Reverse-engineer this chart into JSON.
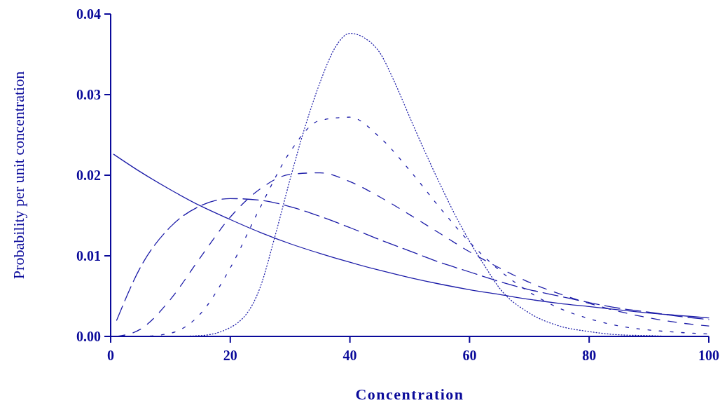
{
  "chart_data": {
    "type": "line",
    "xlabel": "Concentration",
    "ylabel": "Probability per unit concentration",
    "xlim": [
      0,
      100
    ],
    "ylim": [
      0,
      0.04
    ],
    "xticks": [
      0,
      20,
      40,
      60,
      80,
      100
    ],
    "yticks": [
      {
        "value": 0,
        "label": "0.00"
      },
      {
        "value": 0.01,
        "label": "0.01"
      },
      {
        "value": 0.02,
        "label": "0.02"
      },
      {
        "value": 0.03,
        "label": "0.03"
      },
      {
        "value": 0.04,
        "label": "0.04"
      }
    ],
    "grid": false,
    "marker": "none",
    "series": [
      {
        "color": "#1c1ca8",
        "line_style": "solid",
        "x": [
          0.5,
          5,
          10,
          15,
          20,
          25,
          30,
          35,
          40,
          45,
          50,
          55,
          60,
          65,
          70,
          75,
          80,
          85,
          90,
          95,
          100
        ],
        "values": [
          0.0226,
          0.0204,
          0.0182,
          0.0162,
          0.0145,
          0.0129,
          0.0115,
          0.0103,
          0.0092,
          0.0082,
          0.0073,
          0.0065,
          0.0058,
          0.0052,
          0.0046,
          0.0041,
          0.0037,
          0.0033,
          0.0029,
          0.0026,
          0.0023
        ]
      },
      {
        "color": "#1c1ca8",
        "line_style": "dashed",
        "x": [
          1,
          5,
          10,
          15,
          20,
          25,
          30,
          35,
          40,
          45,
          50,
          55,
          60,
          65,
          70,
          75,
          80,
          85,
          90,
          95,
          100
        ],
        "values": [
          0.002,
          0.0086,
          0.0136,
          0.0162,
          0.0171,
          0.0169,
          0.0161,
          0.0149,
          0.0135,
          0.012,
          0.0106,
          0.0092,
          0.008,
          0.0068,
          0.0058,
          0.005,
          0.0042,
          0.0035,
          0.003,
          0.0025,
          0.0021
        ]
      },
      {
        "color": "#1c1ca8",
        "line_style": "dashed",
        "x": [
          1,
          5,
          10,
          15,
          20,
          25,
          30,
          35,
          40,
          45,
          50,
          55,
          60,
          65,
          70,
          75,
          80,
          85,
          90,
          95,
          100
        ],
        "values": [
          0.0,
          0.0009,
          0.0046,
          0.0098,
          0.0148,
          0.0183,
          0.0201,
          0.0203,
          0.0192,
          0.0173,
          0.0151,
          0.0128,
          0.0105,
          0.0085,
          0.0067,
          0.0053,
          0.0041,
          0.0031,
          0.0023,
          0.0017,
          0.0013
        ]
      },
      {
        "color": "#1c1ca8",
        "line_style": "dashed",
        "x": [
          1,
          5,
          10,
          15,
          20,
          25,
          30,
          35,
          40,
          45,
          50,
          55,
          60,
          65,
          70,
          75,
          80,
          85,
          90,
          95,
          100
        ],
        "values": [
          0.0,
          0.0,
          0.0004,
          0.0028,
          0.0085,
          0.016,
          0.0229,
          0.0268,
          0.0272,
          0.0247,
          0.0206,
          0.016,
          0.0117,
          0.0082,
          0.0055,
          0.0035,
          0.0022,
          0.0013,
          0.0008,
          0.0005,
          0.0003
        ]
      },
      {
        "color": "#1c1ca8",
        "line_style": "dotted",
        "x": [
          10,
          15,
          20,
          25,
          27.5,
          30,
          32.5,
          35,
          37.5,
          40,
          42.5,
          45,
          47.5,
          50,
          52.5,
          55,
          57.5,
          60,
          62.5,
          65,
          70,
          75,
          80,
          85,
          90,
          95,
          100
        ],
        "values": [
          0.0,
          0.0001,
          0.0011,
          0.0061,
          0.0125,
          0.0195,
          0.026,
          0.0315,
          0.0358,
          0.0376,
          0.037,
          0.0352,
          0.0315,
          0.0272,
          0.023,
          0.019,
          0.0152,
          0.0118,
          0.0088,
          0.006,
          0.0029,
          0.0013,
          0.0006,
          0.0002,
          0.0001,
          0.0,
          0.0
        ]
      }
    ]
  }
}
